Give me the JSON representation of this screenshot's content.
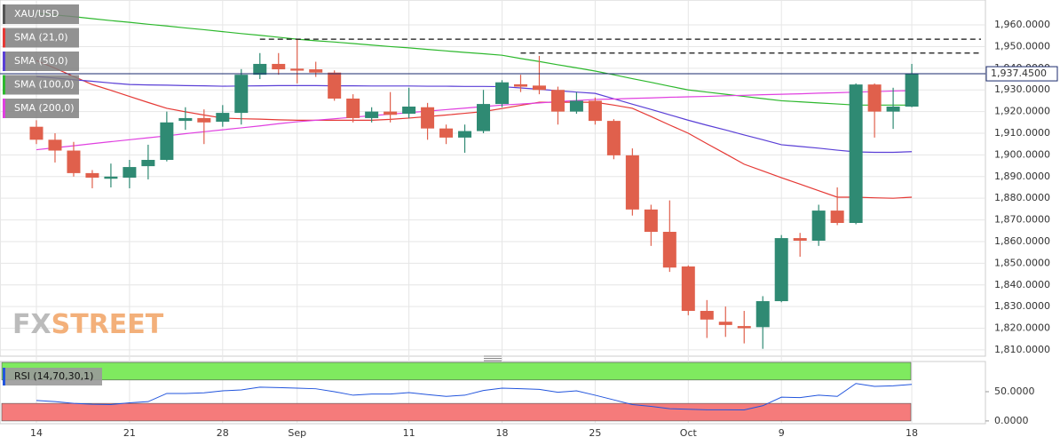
{
  "chart_data": [
    {
      "type": "candlestick",
      "title": "XAU/USD",
      "watermark": [
        "FX",
        "STREET"
      ],
      "categories": [
        "14",
        null,
        null,
        null,
        null,
        "21",
        null,
        null,
        null,
        null,
        "28",
        null,
        null,
        null,
        "Sep",
        null,
        null,
        null,
        null,
        null,
        "11",
        null,
        null,
        null,
        null,
        "18",
        null,
        null,
        null,
        null,
        "25",
        null,
        null,
        null,
        null,
        "Oct",
        null,
        null,
        null,
        null,
        "9",
        null,
        null,
        null,
        null,
        null,
        null,
        "18"
      ],
      "open": [
        1913,
        1907,
        1902,
        1891.6,
        1889,
        1889.5,
        1894.8,
        1897.7,
        1915.7,
        1917,
        1915.3,
        1919.4,
        1937,
        1942,
        1939.8,
        1939.5,
        1938,
        1926,
        1917,
        1920,
        1919,
        1922,
        1912.2,
        1908,
        1911,
        1923.5,
        1932.6,
        1932,
        1930,
        1920,
        1925,
        1915.7,
        1899.8,
        1874.8,
        1864.5,
        1848.5,
        1828,
        1823,
        1821,
        1820.5,
        1832.5,
        1861.6,
        1860.4,
        1874.3,
        1868.6,
        1932.5,
        1920,
        1922.3
      ],
      "high": [
        1916,
        1910,
        1906,
        1893,
        1896,
        1897.7,
        1904.7,
        1920,
        1922,
        1921,
        1923,
        1939.6,
        1947,
        1947,
        1953.4,
        1943,
        1939,
        1928,
        1922,
        1929,
        1931,
        1924,
        1914,
        1914,
        1930,
        1934.5,
        1937,
        1945.7,
        1931.5,
        1929,
        1926.5,
        1916.5,
        1903,
        1877,
        1879,
        1849,
        1833,
        1830,
        1828,
        1834.8,
        1863,
        1864,
        1877,
        1885,
        1933,
        1933,
        1931,
        1942
      ],
      "low": [
        1905,
        1896.5,
        1890,
        1884.6,
        1885,
        1884.6,
        1888.7,
        1897,
        1911.6,
        1905,
        1913,
        1914,
        1935,
        1937,
        1933,
        1936,
        1925,
        1915,
        1915,
        1915,
        1917,
        1907,
        1905,
        1901,
        1910,
        1922,
        1929,
        1928,
        1914,
        1919,
        1914,
        1898,
        1872,
        1858,
        1846,
        1826,
        1815.5,
        1816,
        1813,
        1810.5,
        1832,
        1853,
        1858,
        1867.6,
        1868,
        1908,
        1912,
        1922
      ],
      "close": [
        1907,
        1902,
        1891.6,
        1889.5,
        1890,
        1894.4,
        1897.7,
        1915,
        1917,
        1915,
        1919.4,
        1937,
        1942,
        1939.5,
        1938.9,
        1938,
        1926,
        1917,
        1920,
        1918.5,
        1922.3,
        1912.2,
        1908,
        1911,
        1923.5,
        1933.5,
        1931.5,
        1930,
        1920,
        1925,
        1915.7,
        1899.8,
        1874.8,
        1864.5,
        1848,
        1828,
        1824,
        1821.5,
        1820,
        1832.5,
        1861.6,
        1860.4,
        1874.3,
        1868.6,
        1932.5,
        1920,
        1922.3,
        1937.45
      ],
      "up_color": "#2f8a73",
      "down_color": "#e0604c",
      "series": [
        {
          "name": "SMA (21,0)",
          "color": "#e53935",
          "values": [
            1943.6,
            1940,
            1936.2,
            1932.5,
            1929.8,
            1927,
            1924.2,
            1921.5,
            1919.9,
            1918.4,
            1917,
            1916.7,
            1916.5,
            1916.2,
            1916,
            1916,
            1916,
            1916,
            1916,
            1916.4,
            1917,
            1917.7,
            1918.4,
            1919.2,
            1920,
            1921.4,
            1922.9,
            1924.3,
            1924.3,
            1924.3,
            1924.3,
            1923,
            1921.5,
            1917.7,
            1913.8,
            1910,
            1905.2,
            1900.5,
            1895.7,
            1892.6,
            1889.5,
            1886.5,
            1883.5,
            1880.5,
            1880.5,
            1880.2,
            1880,
            1880.5
          ]
        },
        {
          "name": "SMA (50,0)",
          "color": "#5a3fd6",
          "values": [
            1936.2,
            1935.5,
            1934.7,
            1934,
            1933.2,
            1932.5,
            1932.3,
            1932.2,
            1932,
            1931.9,
            1931.7,
            1931.8,
            1931.9,
            1932,
            1932,
            1932,
            1931.9,
            1931.9,
            1931.8,
            1931.8,
            1931.8,
            1931.7,
            1931.7,
            1931.6,
            1931.6,
            1931.5,
            1930.9,
            1930.3,
            1929.6,
            1929,
            1928.4,
            1925.9,
            1923.4,
            1921,
            1918.5,
            1916,
            1913.7,
            1911.5,
            1909.2,
            1907,
            1904.7,
            1903.9,
            1903.1,
            1902.2,
            1901.4,
            1901.2,
            1901.2,
            1901.5
          ]
        },
        {
          "name": "SMA (100,0)",
          "color": "#2db82d",
          "values": [
            1965.5,
            1964.6,
            1963.8,
            1962.9,
            1962,
            1961.2,
            1960.3,
            1959.5,
            1958.6,
            1957.8,
            1956.9,
            1956,
            1955.2,
            1954.3,
            1953.4,
            1952.7,
            1952.1,
            1951.4,
            1950.7,
            1950,
            1949.4,
            1948.7,
            1948,
            1947.3,
            1946.7,
            1946,
            1944.5,
            1943.1,
            1941.6,
            1940.2,
            1938.7,
            1937,
            1935.2,
            1933.5,
            1931.7,
            1930,
            1929,
            1928,
            1927,
            1926,
            1925,
            1924.5,
            1924,
            1923.5,
            1923,
            1923,
            1923,
            1923
          ]
        },
        {
          "name": "SMA (200,0)",
          "color": "#e040e0",
          "values": [
            1902.4,
            1903.3,
            1904.2,
            1905.2,
            1906.1,
            1907,
            1907.9,
            1908.8,
            1909.8,
            1910.7,
            1911.6,
            1912.5,
            1913.4,
            1914.4,
            1915.3,
            1916,
            1916.7,
            1917.4,
            1918.1,
            1918.8,
            1919.5,
            1920.2,
            1920.9,
            1921.6,
            1922.3,
            1923,
            1923.5,
            1924,
            1924.6,
            1925.1,
            1925.6,
            1925.8,
            1926.1,
            1926.3,
            1926.6,
            1926.8,
            1927,
            1927.3,
            1927.5,
            1927.8,
            1928,
            1928.2,
            1928.5,
            1928.7,
            1929,
            1929.2,
            1929.5,
            1929.7
          ]
        }
      ],
      "levels": [
        1953.4,
        1947
      ],
      "levels_start": [
        12,
        26
      ],
      "last_price": 1937.45,
      "last_price_label": "1,937.4500",
      "ylim": [
        1807.1,
        1971.5
      ],
      "yticks": [
        {
          "value": 1810,
          "label": "1,810.0000"
        },
        {
          "value": 1820,
          "label": "1,820.0000"
        },
        {
          "value": 1830,
          "label": "1,830.0000"
        },
        {
          "value": 1840,
          "label": "1,840.0000"
        },
        {
          "value": 1850,
          "label": "1,850.0000"
        },
        {
          "value": 1860,
          "label": "1,860.0000"
        },
        {
          "value": 1870,
          "label": "1,870.0000"
        },
        {
          "value": 1880,
          "label": "1,880.0000"
        },
        {
          "value": 1890,
          "label": "1,890.0000"
        },
        {
          "value": 1900,
          "label": "1,900.0000"
        },
        {
          "value": 1910,
          "label": "1,910.0000"
        },
        {
          "value": 1920,
          "label": "1,920.0000"
        },
        {
          "value": 1930,
          "label": "1,930.0000"
        },
        {
          "value": 1940,
          "label": "1,940.0000"
        },
        {
          "value": 1950,
          "label": "1,950.0000"
        },
        {
          "value": 1960,
          "label": "1,960.0000"
        }
      ],
      "grid": true
    },
    {
      "type": "line",
      "series": [
        {
          "name": "RSI (14,70,30,1)",
          "color": "#2255dd",
          "values": [
            35,
            33,
            30,
            28.5,
            28,
            31,
            33,
            47,
            47,
            48,
            51.5,
            53,
            57.8,
            57,
            56,
            55,
            50,
            44,
            46,
            46,
            48.4,
            45,
            42,
            44,
            52,
            56,
            55,
            54,
            49,
            51.5,
            44,
            36,
            28,
            25,
            21,
            20,
            19,
            19,
            18.8,
            26,
            40.6,
            40,
            44,
            42,
            64,
            59,
            60,
            62.5
          ]
        }
      ],
      "bands": [
        {
          "from": 70,
          "to": 100,
          "color": "#7fea5f"
        },
        {
          "from": 0,
          "to": 30,
          "color": "#f57b7b"
        }
      ],
      "ylim": [
        -4.7,
        101.6
      ],
      "yticks": [
        {
          "value": 0,
          "label": "0.0000"
        },
        {
          "value": 50,
          "label": "50.0000"
        }
      ]
    }
  ]
}
